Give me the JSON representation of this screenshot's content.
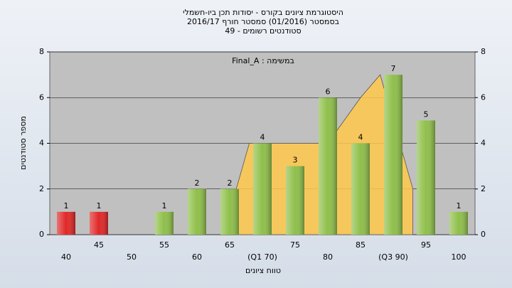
{
  "chart_data": {
    "type": "bar",
    "title": [
      "היסטוגרמת ציונים בקורס - יסודות תכן ביו-חשמלי",
      "בסמסטר  (01/2016)  סמסטר חורף 2016/17",
      "סטודנטים רשומים - 49"
    ],
    "annotation": "Final_A : במשימה",
    "x_label": "טווח ציונים",
    "y_label": "מספר סטודנטים",
    "categories": [
      "40",
      "45",
      "50",
      "55",
      "60",
      "65",
      "(Q1 70)",
      "75",
      "80",
      "85",
      "(Q3 90)",
      "95",
      "100"
    ],
    "values": [
      1,
      1,
      0,
      1,
      2,
      2,
      4,
      3,
      6,
      4,
      7,
      5,
      1
    ],
    "colors": [
      "#e02828",
      "#e02828",
      "#8fbf4a",
      "#8fbf4a",
      "#8fbf4a",
      "#8fbf4a",
      "#8fbf4a",
      "#8fbf4a",
      "#8fbf4a",
      "#8fbf4a",
      "#8fbf4a",
      "#8fbf4a",
      "#8fbf4a"
    ],
    "area": {
      "color": "#ffc84a",
      "x": [
        66,
        68,
        80,
        85,
        88,
        93
      ],
      "values": [
        2,
        4,
        4,
        6,
        7,
        2
      ]
    },
    "ylim": [
      0,
      8
    ],
    "yticks": [
      0,
      2,
      4,
      6,
      8
    ],
    "y2lim": [
      0,
      8
    ],
    "y2ticks": [
      0,
      2,
      4,
      6,
      8
    ],
    "grid": true
  }
}
